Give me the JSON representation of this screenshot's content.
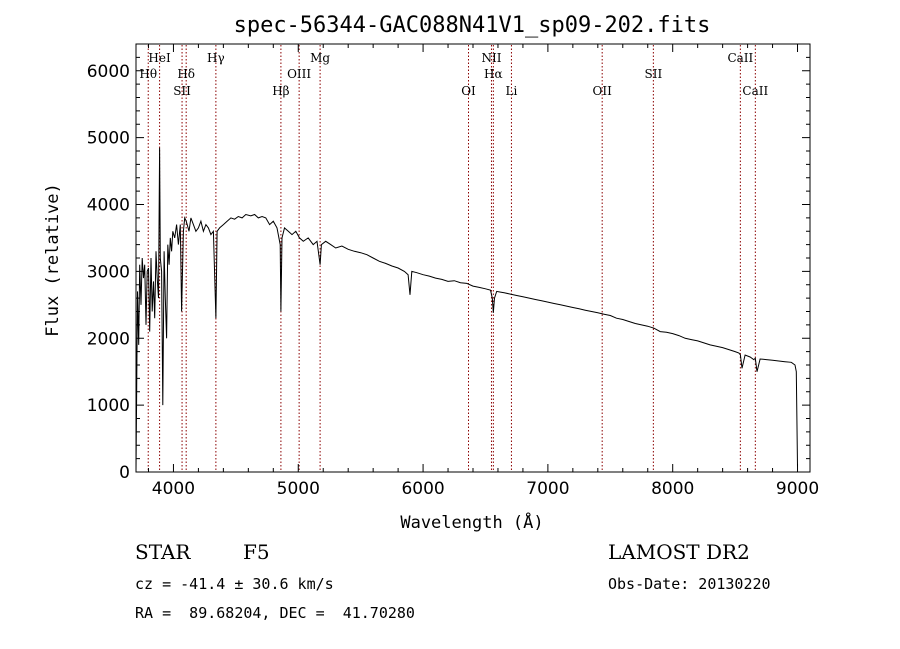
{
  "chart_data": {
    "type": "line",
    "title": "spec-56344-GAC088N41V1_sp09-202.fits",
    "xlabel": "Wavelength (Å)",
    "ylabel": "Flux (relative)",
    "xlim": [
      3700,
      9100
    ],
    "ylim": [
      0,
      6400
    ],
    "xticks": [
      4000,
      5000,
      6000,
      7000,
      8000,
      9000
    ],
    "yticks": [
      0,
      1000,
      2000,
      3000,
      4000,
      5000,
      6000
    ],
    "xtick_labels": [
      "4000",
      "5000",
      "6000",
      "7000",
      "8000",
      "9000"
    ],
    "ytick_labels": [
      "0",
      "1000",
      "2000",
      "3000",
      "4000",
      "5000",
      "6000"
    ],
    "spectral_lines": [
      {
        "label": "Hθ",
        "wavelength": 3798,
        "row": 2
      },
      {
        "label": "HeI",
        "wavelength": 3889,
        "row": 1
      },
      {
        "label": "SII",
        "wavelength": 4069,
        "row": 3
      },
      {
        "label": "Hδ",
        "wavelength": 4102,
        "row": 2
      },
      {
        "label": "Hγ",
        "wavelength": 4340,
        "row": 1
      },
      {
        "label": "Hβ",
        "wavelength": 4861,
        "row": 3
      },
      {
        "label": "OIII",
        "wavelength": 5007,
        "row": 2
      },
      {
        "label": "Mg",
        "wavelength": 5175,
        "row": 1
      },
      {
        "label": "OI",
        "wavelength": 6364,
        "row": 3
      },
      {
        "label": "NII",
        "wavelength": 6548,
        "row": 1
      },
      {
        "label": "Hα",
        "wavelength": 6563,
        "row": 2
      },
      {
        "label": "Li",
        "wavelength": 6708,
        "row": 3
      },
      {
        "label": "OII",
        "wavelength": 7435,
        "row": 3
      },
      {
        "label": "SII",
        "wavelength": 7845,
        "row": 2
      },
      {
        "label": "CaII",
        "wavelength": 8542,
        "row": 1
      },
      {
        "label": "CaII",
        "wavelength": 8662,
        "row": 3
      }
    ],
    "series": [
      {
        "name": "flux",
        "x": [
          3700,
          3712,
          3722,
          3730,
          3740,
          3750,
          3760,
          3770,
          3780,
          3790,
          3800,
          3810,
          3820,
          3830,
          3840,
          3850,
          3860,
          3870,
          3880,
          3889,
          3895,
          3905,
          3915,
          3925,
          3935,
          3945,
          3955,
          3965,
          3975,
          3985,
          3995,
          4010,
          4025,
          4040,
          4055,
          4065,
          4080,
          4090,
          4102,
          4110,
          4125,
          4140,
          4160,
          4180,
          4200,
          4220,
          4240,
          4260,
          4280,
          4300,
          4320,
          4340,
          4350,
          4370,
          4400,
          4430,
          4460,
          4490,
          4520,
          4550,
          4580,
          4620,
          4650,
          4680,
          4710,
          4740,
          4770,
          4800,
          4830,
          4855,
          4861,
          4870,
          4890,
          4920,
          4950,
          4980,
          5010,
          5040,
          5080,
          5120,
          5150,
          5175,
          5185,
          5220,
          5260,
          5300,
          5350,
          5400,
          5450,
          5500,
          5550,
          5600,
          5650,
          5700,
          5750,
          5800,
          5850,
          5880,
          5895,
          5910,
          5950,
          6000,
          6050,
          6100,
          6150,
          6200,
          6250,
          6300,
          6350,
          6400,
          6450,
          6500,
          6540,
          6555,
          6563,
          6572,
          6590,
          6620,
          6650,
          6700,
          6750,
          6800,
          6850,
          6900,
          6950,
          7000,
          7050,
          7100,
          7150,
          7200,
          7250,
          7300,
          7350,
          7400,
          7450,
          7500,
          7550,
          7600,
          7650,
          7700,
          7750,
          7800,
          7850,
          7900,
          7950,
          8000,
          8050,
          8100,
          8150,
          8200,
          8250,
          8300,
          8350,
          8400,
          8450,
          8500,
          8530,
          8542,
          8555,
          8580,
          8620,
          8650,
          8662,
          8675,
          8700,
          8750,
          8800,
          8850,
          8900,
          8950,
          8980,
          8990,
          9000
        ],
        "values": [
          0,
          2700,
          1900,
          3100,
          2500,
          3200,
          2900,
          3100,
          2200,
          3000,
          3050,
          2100,
          3200,
          2400,
          2850,
          2300,
          3300,
          2900,
          2600,
          4850,
          3200,
          3000,
          1000,
          3300,
          2600,
          2000,
          3400,
          3100,
          3500,
          3300,
          3600,
          3500,
          3700,
          3400,
          3700,
          2400,
          3600,
          3800,
          3750,
          3700,
          3600,
          3800,
          3700,
          3600,
          3650,
          3750,
          3600,
          3700,
          3650,
          3550,
          3600,
          2300,
          3600,
          3650,
          3700,
          3750,
          3800,
          3780,
          3820,
          3800,
          3850,
          3830,
          3850,
          3800,
          3820,
          3800,
          3700,
          3750,
          3650,
          3400,
          2400,
          3500,
          3650,
          3600,
          3550,
          3600,
          3500,
          3450,
          3500,
          3400,
          3450,
          3100,
          3400,
          3450,
          3400,
          3350,
          3380,
          3330,
          3300,
          3280,
          3250,
          3200,
          3150,
          3120,
          3080,
          3050,
          3000,
          2950,
          2650,
          3000,
          2980,
          2950,
          2930,
          2900,
          2880,
          2850,
          2860,
          2830,
          2820,
          2780,
          2760,
          2740,
          2720,
          2600,
          2380,
          2600,
          2700,
          2690,
          2680,
          2660,
          2640,
          2620,
          2600,
          2580,
          2560,
          2540,
          2520,
          2500,
          2480,
          2460,
          2440,
          2420,
          2400,
          2380,
          2360,
          2340,
          2300,
          2280,
          2250,
          2220,
          2200,
          2180,
          2150,
          2100,
          2090,
          2070,
          2040,
          2000,
          1980,
          1960,
          1930,
          1900,
          1880,
          1860,
          1830,
          1800,
          1780,
          1750,
          1550,
          1750,
          1720,
          1680,
          1700,
          1500,
          1690,
          1680,
          1670,
          1660,
          1650,
          1640,
          1600,
          1500,
          80
        ]
      }
    ]
  },
  "info": {
    "object_type": "STAR",
    "subclass": "F5",
    "survey": "LAMOST DR2",
    "redshift_line": "cz = -41.4 ± 30.6 km/s",
    "obs_date_line": "Obs-Date: 20130220",
    "coords_line": "RA =  89.68204, DEC =  41.70280"
  },
  "colors": {
    "axis": "#000000",
    "spectrum": "#000000",
    "marker": "#8b0000"
  }
}
